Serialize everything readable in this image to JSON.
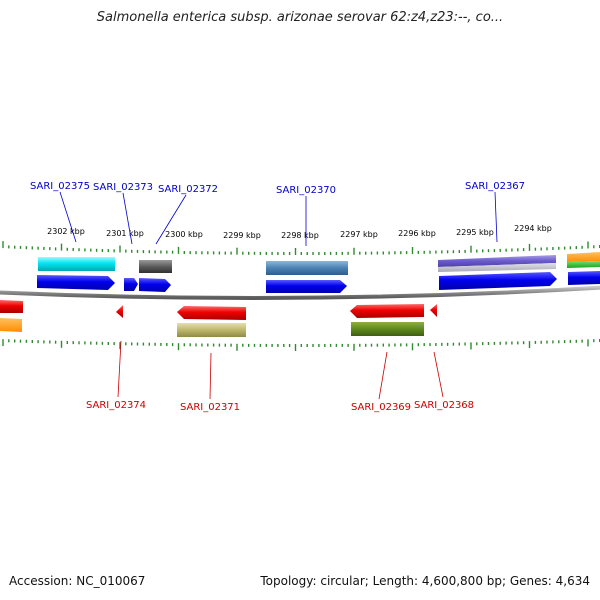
{
  "title": "Salmonella enterica subsp. arizonae serovar 62:z4,z23:--, co...",
  "footer": {
    "accession": "Accession: NC_010067",
    "topology": "Topology: circular; Length: 4,600,800 bp; Genes: 4,634"
  },
  "colors": {
    "upper_label": "#0000cc",
    "lower_label": "#cc0000",
    "tick": "#2e8b2e",
    "backbone": "#8a8a8a"
  },
  "scale_labels": [
    "2302 kbp",
    "2301 kbp",
    "2300 kbp",
    "2299 kbp",
    "2298 kbp",
    "2297 kbp",
    "2296 kbp",
    "2295 kbp",
    "2294 kbp"
  ],
  "upper_genes": [
    {
      "label": "SARI_02375"
    },
    {
      "label": "SARI_02373"
    },
    {
      "label": "SARI_02372"
    },
    {
      "label": "SARI_02370"
    },
    {
      "label": "SARI_02367"
    }
  ],
  "lower_genes": [
    {
      "label": "SARI_02374"
    },
    {
      "label": "SARI_02371"
    },
    {
      "label": "SARI_02369"
    },
    {
      "label": "SARI_02368"
    }
  ]
}
